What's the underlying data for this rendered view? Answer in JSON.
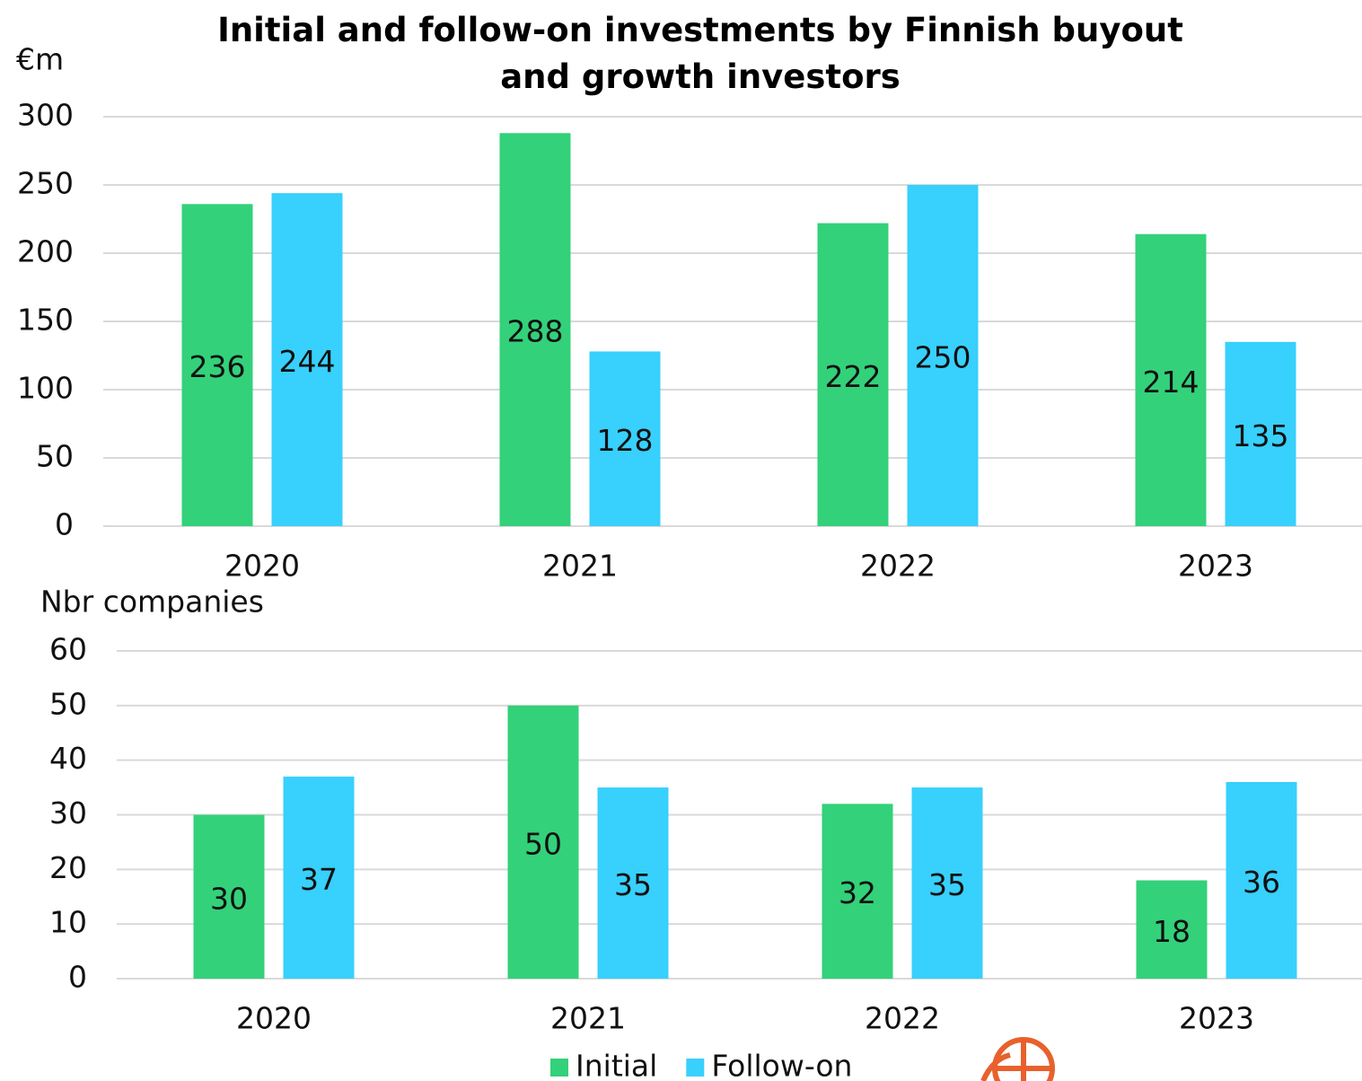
{
  "chart_data": [
    {
      "type": "bar",
      "title": "Initial and follow-on investments by Finnish buyout and growth investors",
      "y_label": "€m",
      "categories": [
        "2020",
        "2021",
        "2022",
        "2023"
      ],
      "series": [
        {
          "name": "Initial",
          "color": "#33d17a",
          "values": [
            236,
            288,
            222,
            214
          ]
        },
        {
          "name": "Follow-on",
          "color": "#38d0fc",
          "values": [
            244,
            128,
            250,
            135
          ]
        }
      ],
      "ylim": [
        0,
        300
      ],
      "yticks": [
        0,
        50,
        100,
        150,
        200,
        250,
        300
      ],
      "grid": true
    },
    {
      "type": "bar",
      "y_label": "Nbr companies",
      "categories": [
        "2020",
        "2021",
        "2022",
        "2023"
      ],
      "series": [
        {
          "color": "#33d17a",
          "values": [
            30,
            50,
            32,
            18
          ]
        },
        {
          "color": "#38d0fc",
          "values": [
            37,
            35,
            35,
            36
          ]
        }
      ],
      "ylim": [
        0,
        60
      ],
      "yticks": [
        0,
        10,
        20,
        30,
        40,
        50,
        60
      ],
      "grid": true
    }
  ]
}
